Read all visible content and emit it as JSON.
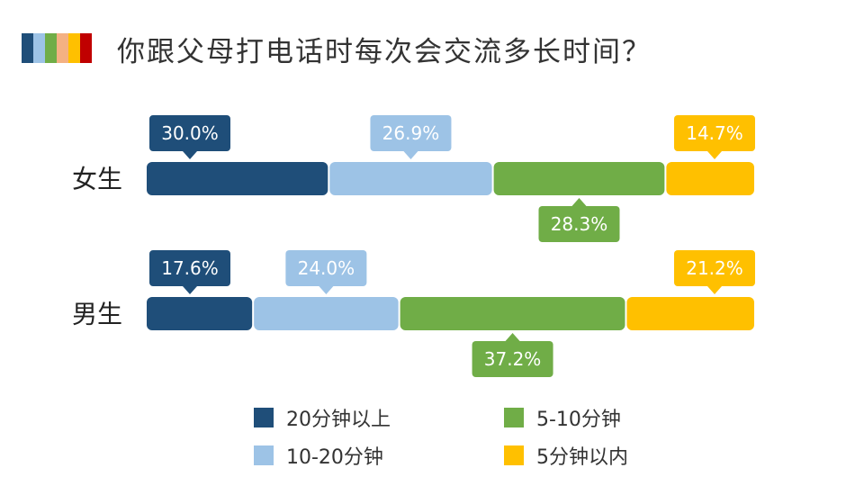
{
  "header": {
    "title": "你跟父母打电话时每次会交流多长时间？",
    "stripe_colors": [
      "#1f4e79",
      "#9dc3e6",
      "#70ad47",
      "#f4b183",
      "#ffc000",
      "#c00000"
    ]
  },
  "chart_data": {
    "type": "bar",
    "stacked": true,
    "orientation": "horizontal",
    "title": "你跟父母打电话时每次会交流多长时间？",
    "categories": [
      "女生",
      "男生"
    ],
    "series": [
      {
        "name": "20分钟以上",
        "color": "#1f4e79",
        "values": [
          30.0,
          17.6
        ],
        "labels": [
          "30.0%",
          "17.6%"
        ],
        "label_position": "above"
      },
      {
        "name": "10-20分钟",
        "color": "#9dc3e6",
        "values": [
          26.9,
          24.0
        ],
        "labels": [
          "26.9%",
          "24.0%"
        ],
        "label_position": "above"
      },
      {
        "name": "5-10分钟",
        "color": "#70ad47",
        "values": [
          28.3,
          37.2
        ],
        "labels": [
          "28.3%",
          "37.2%"
        ],
        "label_position": "below"
      },
      {
        "name": "5分钟以内",
        "color": "#ffc000",
        "values": [
          14.7,
          21.2
        ],
        "labels": [
          "14.7%",
          "21.2%"
        ],
        "label_position": "above"
      }
    ],
    "legend": {
      "position": "bottom",
      "items": [
        "20分钟以上",
        "5-10分钟",
        "10-20分钟",
        "5分钟以内"
      ]
    }
  }
}
